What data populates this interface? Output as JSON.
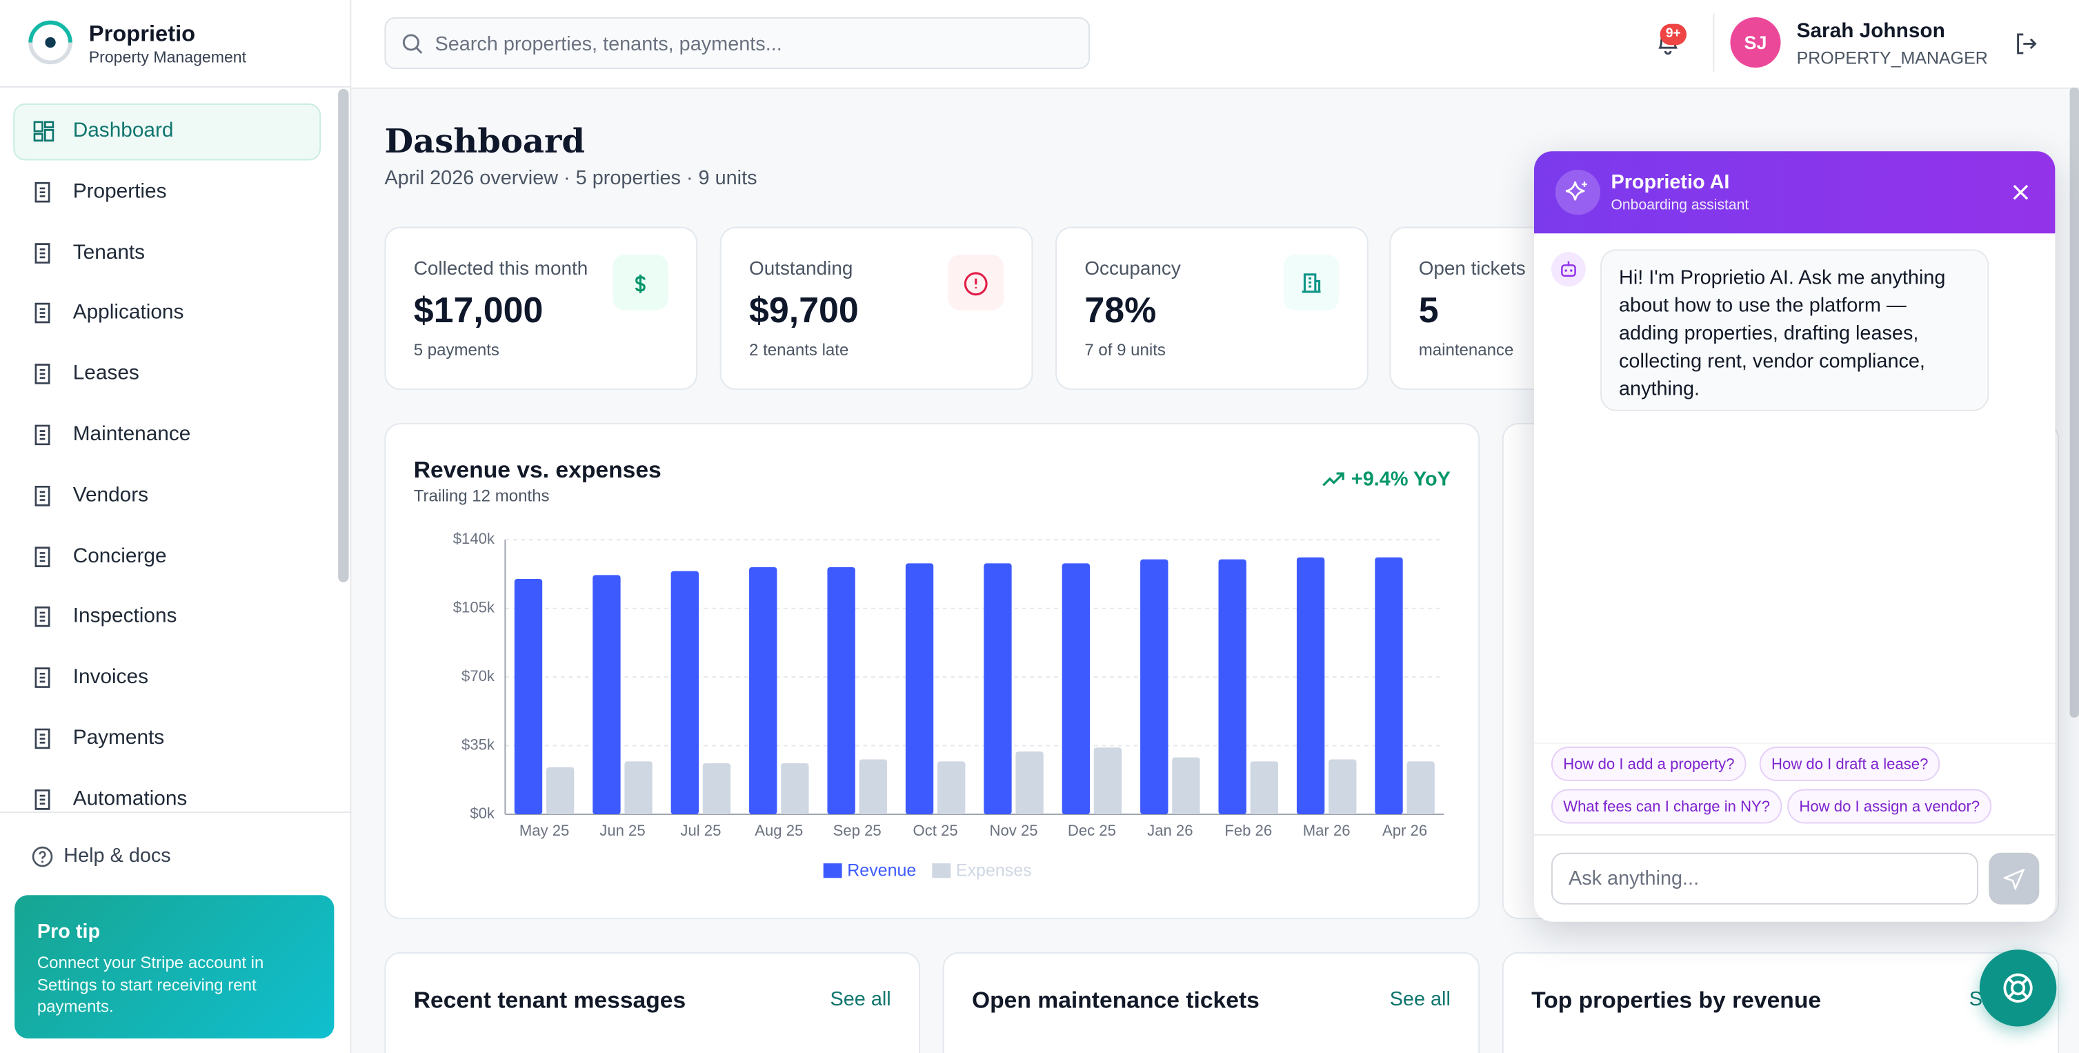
{
  "brand": {
    "name": "Proprietio",
    "tagline": "Property Management"
  },
  "search": {
    "placeholder": "Search properties, tenants, payments..."
  },
  "notifications": {
    "badge": "9+"
  },
  "user": {
    "initials": "SJ",
    "name": "Sarah Johnson",
    "role": "PROPERTY_MANAGER"
  },
  "nav": {
    "items": [
      "Dashboard",
      "Properties",
      "Tenants",
      "Applications",
      "Leases",
      "Maintenance",
      "Vendors",
      "Concierge",
      "Inspections",
      "Invoices",
      "Payments",
      "Automations"
    ],
    "help": "Help & docs"
  },
  "pro_tip": {
    "title": "Pro tip",
    "text": "Connect your Stripe account in Settings to start receiving rent payments."
  },
  "page": {
    "title": "Dashboard",
    "subtitle": "April 2026 overview · 5 properties · 9 units"
  },
  "kpis": [
    {
      "label": "Collected this month",
      "value": "$17,000",
      "note": "5 payments"
    },
    {
      "label": "Outstanding",
      "value": "$9,700",
      "note": "2 tenants late"
    },
    {
      "label": "Occupancy",
      "value": "78%",
      "note": "7 of 9 units"
    },
    {
      "label": "Open tickets",
      "value": "5",
      "note": "maintenance"
    }
  ],
  "chart_data": {
    "type": "bar",
    "title": "Revenue vs. expenses",
    "subtitle": "Trailing 12 months",
    "badge": "+9.4% YoY",
    "categories": [
      "May 25",
      "Jun 25",
      "Jul 25",
      "Aug 25",
      "Sep 25",
      "Oct 25",
      "Nov 25",
      "Dec 25",
      "Jan 26",
      "Feb 26",
      "Mar 26",
      "Apr 26"
    ],
    "series": [
      {
        "name": "Revenue",
        "color": "#3d5afe",
        "values": [
          120000,
          122000,
          124000,
          126000,
          126000,
          128000,
          128000,
          128000,
          130000,
          130000,
          131000,
          131000
        ]
      },
      {
        "name": "Expenses",
        "color": "#cfd7e3",
        "values": [
          24000,
          27000,
          26000,
          26000,
          28000,
          27000,
          32000,
          34000,
          29000,
          27000,
          28000,
          27000
        ]
      }
    ],
    "ylim": [
      0,
      140000
    ],
    "yticks": [
      {
        "value": 0,
        "label": "$0k"
      },
      {
        "value": 35000,
        "label": "$35k"
      },
      {
        "value": 70000,
        "label": "$70k"
      },
      {
        "value": 105000,
        "label": "$105k"
      },
      {
        "value": 140000,
        "label": "$140k"
      }
    ],
    "grid": true
  },
  "panels": [
    {
      "title": "Recent tenant messages",
      "link": "See all"
    },
    {
      "title": "Open maintenance tickets",
      "link": "See all"
    },
    {
      "title": "Top properties by revenue",
      "link": "See all"
    }
  ],
  "assistant": {
    "title": "Proprietio AI",
    "subtitle": "Onboarding assistant",
    "message": "Hi! I'm Proprietio AI. Ask me anything about how to use the platform — adding properties, drafting leases, collecting rent, vendor compliance, anything.",
    "suggestions": [
      "How do I add a property?",
      "How do I draft a lease?",
      "What fees can I charge in NY?",
      "How do I assign a vendor?"
    ],
    "input_placeholder": "Ask anything..."
  }
}
